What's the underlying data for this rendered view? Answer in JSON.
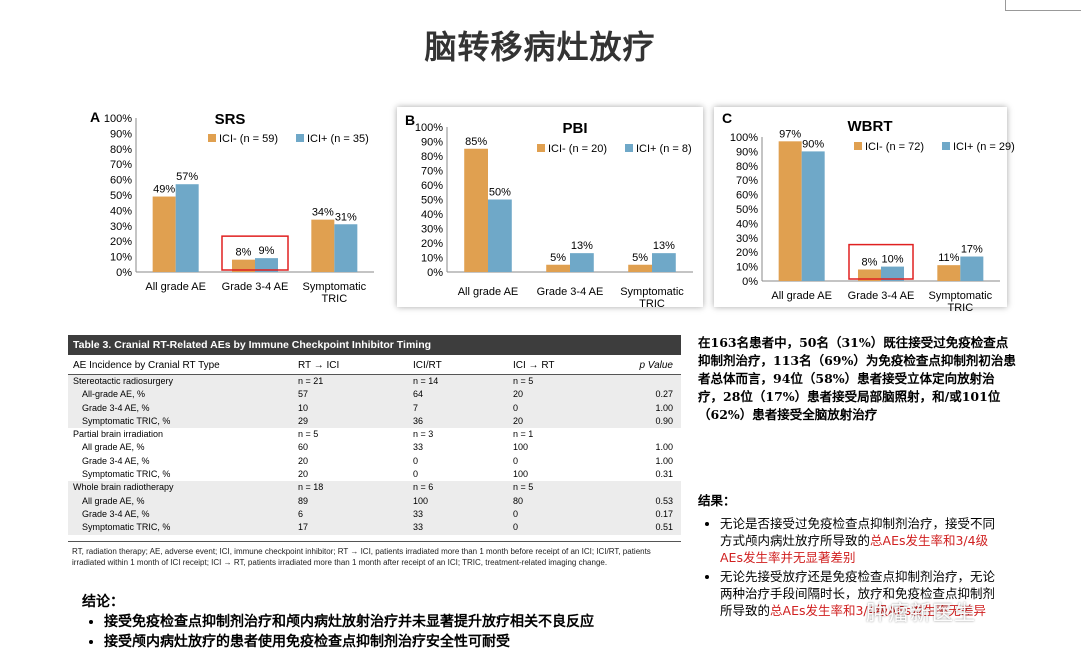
{
  "slide": {
    "title": "脑转移病灶放疗"
  },
  "charts": [
    {
      "panel": "A",
      "title": "SRS",
      "legend": [
        "ICI- (n = 59)",
        "ICI+ (n = 35)"
      ],
      "categories": [
        "All grade AE",
        "Grade 3-4 AE",
        "Symptomatic TRIC"
      ],
      "series": [
        {
          "name": "ICI- (n = 59)",
          "values": [
            49,
            8,
            34
          ],
          "labels": [
            "49%",
            "8%",
            "34%"
          ]
        },
        {
          "name": "ICI+ (n = 35)",
          "values": [
            57,
            9,
            31
          ],
          "labels": [
            "57%",
            "9%",
            "31%"
          ]
        }
      ],
      "yticks": [
        "0%",
        "10%",
        "20%",
        "30%",
        "40%",
        "50%",
        "60%",
        "70%",
        "80%",
        "90%",
        "100%"
      ]
    },
    {
      "panel": "B",
      "title": "PBI",
      "legend": [
        "ICI- (n = 20)",
        "ICI+ (n = 8)"
      ],
      "categories": [
        "All grade AE",
        "Grade 3-4 AE",
        "Symptomatic TRIC"
      ],
      "series": [
        {
          "name": "ICI- (n = 20)",
          "values": [
            85,
            5,
            5
          ],
          "labels": [
            "85%",
            "5%",
            "5%"
          ]
        },
        {
          "name": "ICI+ (n = 8)",
          "values": [
            50,
            13,
            13
          ],
          "labels": [
            "50%",
            "13%",
            "13%"
          ]
        }
      ],
      "yticks": [
        "0%",
        "10%",
        "20%",
        "30%",
        "40%",
        "50%",
        "60%",
        "70%",
        "80%",
        "90%",
        "100%"
      ]
    },
    {
      "panel": "C",
      "title": "WBRT",
      "legend": [
        "ICI- (n = 72)",
        "ICI+ (n = 29)"
      ],
      "categories": [
        "All grade AE",
        "Grade 3-4 AE",
        "Symptomatic TRIC"
      ],
      "series": [
        {
          "name": "ICI- (n = 72)",
          "values": [
            97,
            8,
            11
          ],
          "labels": [
            "97%",
            "8%",
            "11%"
          ]
        },
        {
          "name": "ICI+ (n = 29)",
          "values": [
            90,
            10,
            17
          ],
          "labels": [
            "90%",
            "10%",
            "17%"
          ]
        }
      ],
      "yticks": [
        "0%",
        "10%",
        "20%",
        "30%",
        "40%",
        "50%",
        "60%",
        "70%",
        "80%",
        "90%",
        "100%"
      ]
    }
  ],
  "chart_data": [
    {
      "type": "bar",
      "title": "SRS",
      "categories": [
        "All grade AE",
        "Grade 3-4 AE",
        "Symptomatic TRIC"
      ],
      "series": [
        {
          "name": "ICI- (n = 59)",
          "values": [
            49,
            8,
            34
          ]
        },
        {
          "name": "ICI+ (n = 35)",
          "values": [
            57,
            9,
            31
          ]
        }
      ],
      "ylim": [
        0,
        100
      ]
    },
    {
      "type": "bar",
      "title": "PBI",
      "categories": [
        "All grade AE",
        "Grade 3-4 AE",
        "Symptomatic TRIC"
      ],
      "series": [
        {
          "name": "ICI- (n = 20)",
          "values": [
            85,
            5,
            5
          ]
        },
        {
          "name": "ICI+ (n = 8)",
          "values": [
            50,
            13,
            13
          ]
        }
      ],
      "ylim": [
        0,
        100
      ]
    },
    {
      "type": "bar",
      "title": "WBRT",
      "categories": [
        "All grade AE",
        "Grade 3-4 AE",
        "Symptomatic TRIC"
      ],
      "series": [
        {
          "name": "ICI- (n = 72)",
          "values": [
            97,
            8,
            11
          ]
        },
        {
          "name": "ICI+ (n = 29)",
          "values": [
            90,
            10,
            17
          ]
        }
      ],
      "ylim": [
        0,
        100
      ]
    }
  ],
  "colors": {
    "ici_minus": "#e0a050",
    "ici_plus": "#6fa8c8",
    "highlight": "#e02020",
    "red_text": "#d02020"
  },
  "table": {
    "caption": "Table 3. Cranial RT-Related AEs by Immune Checkpoint Inhibitor Timing",
    "headers": [
      "AE Incidence by Cranial RT Type",
      "RT → ICI",
      "ICI/RT",
      "ICI → RT",
      "p Value"
    ],
    "rows": [
      {
        "label": "Stereotactic radiosurgery",
        "cells": [
          "n = 21",
          "n = 14",
          "n = 5",
          ""
        ],
        "group": true,
        "shade": true
      },
      {
        "label": "All-grade AE, %",
        "cells": [
          "57",
          "64",
          "20",
          "0.27"
        ],
        "group": false,
        "shade": true
      },
      {
        "label": "Grade 3-4 AE, %",
        "cells": [
          "10",
          "7",
          "0",
          "1.00"
        ],
        "group": false,
        "shade": true
      },
      {
        "label": "Symptomatic TRIC, %",
        "cells": [
          "29",
          "36",
          "20",
          "0.90"
        ],
        "group": false,
        "shade": true
      },
      {
        "label": "Partial brain irradiation",
        "cells": [
          "n = 5",
          "n = 3",
          "n = 1",
          ""
        ],
        "group": true,
        "shade": false
      },
      {
        "label": "All grade AE, %",
        "cells": [
          "60",
          "33",
          "100",
          "1.00"
        ],
        "group": false,
        "shade": false
      },
      {
        "label": "Grade 3-4 AE, %",
        "cells": [
          "20",
          "0",
          "0",
          "1.00"
        ],
        "group": false,
        "shade": false
      },
      {
        "label": "Symptomatic TRIC, %",
        "cells": [
          "20",
          "0",
          "100",
          "0.31"
        ],
        "group": false,
        "shade": false
      },
      {
        "label": "Whole brain radiotherapy",
        "cells": [
          "n = 18",
          "n = 6",
          "n = 5",
          ""
        ],
        "group": true,
        "shade": true
      },
      {
        "label": "All grade AE, %",
        "cells": [
          "89",
          "100",
          "80",
          "0.53"
        ],
        "group": false,
        "shade": true
      },
      {
        "label": "Grade 3-4 AE, %",
        "cells": [
          "6",
          "33",
          "0",
          "0.17"
        ],
        "group": false,
        "shade": true
      },
      {
        "label": "Symptomatic TRIC, %",
        "cells": [
          "17",
          "33",
          "0",
          "0.51"
        ],
        "group": false,
        "shade": true
      }
    ],
    "footnote": "RT, radiation therapy; AE, adverse event; ICI, immune checkpoint inhibitor; RT → ICI, patients irradiated more than 1 month before receipt of an ICI; ICI/RT, patients irradiated within 1 month of ICI receipt; ICI → RT, patients irradiated more than 1 month after receipt of an ICI; TRIC, treatment-related imaging change."
  },
  "summary": {
    "text": "在163名患者中，50名（31%）既往接受过免疫检查点抑制剂治疗，113名（69%）为免疫检查点抑制剂初治患者总体而言，94位（58%）患者接受立体定向放射治疗，28位（17%）患者接受局部脑照射，和/或101位（62%）患者接受全脑放射治疗"
  },
  "results": {
    "heading": "结果：",
    "items": [
      {
        "plain": "无论是否接受过免疫检查点抑制剂治疗，接受不同方式颅内病灶放疗所导致的",
        "red": "总AEs发生率和3/4级AEs发生率并无显著差别"
      },
      {
        "plain": "无论先接受放疗还是免疫检查点抑制剂治疗，无论两种治疗手段间隔时长，放疗和免疫检查点抑制剂所导致的",
        "red": "总AEs发生率和3/4级AEs发生率无差异"
      }
    ]
  },
  "conclusion": {
    "heading": "结论：",
    "items": [
      "接受免疫检查点抑制剂治疗和颅内病灶放射治疗并未显著提升放疗相关不良反应",
      "接受颅内病灶放疗的患者使用免疫检查点抑制剂治疗安全性可耐受"
    ]
  },
  "watermark": "肿瘤新医生"
}
